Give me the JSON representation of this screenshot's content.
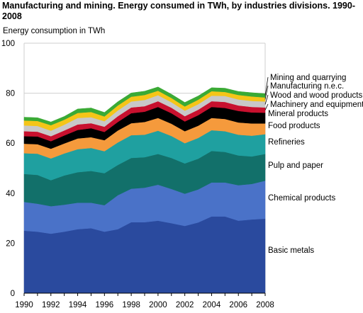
{
  "chart_data": {
    "type": "area",
    "stacked": true,
    "title": "Manufacturing and mining. Energy consumed in TWh, by industries divisions. 1990-2008",
    "ylabel": "Energy consumption in TWh",
    "xlabel": "",
    "ylim": [
      0,
      100
    ],
    "y_ticks": [
      "0",
      "20",
      "40",
      "60",
      "80",
      "100"
    ],
    "x": [
      1990,
      1991,
      1992,
      1993,
      1994,
      1995,
      1996,
      1997,
      1998,
      1999,
      2000,
      2001,
      2002,
      2003,
      2004,
      2005,
      2006,
      2007,
      2008
    ],
    "x_ticks": [
      "1990",
      "1992",
      "1994",
      "1996",
      "1998",
      "2000",
      "2002",
      "2004",
      "2006",
      "2008"
    ],
    "grid": true,
    "series": [
      {
        "name": "Basic metals",
        "color": "#2a4a9e",
        "values": [
          25.0,
          24.6,
          23.8,
          24.6,
          25.6,
          26.0,
          24.6,
          25.6,
          28.4,
          28.4,
          29.0,
          28.0,
          26.9,
          28.3,
          30.7,
          30.7,
          29.0,
          29.5,
          29.8
        ]
      },
      {
        "name": "Chemical products",
        "color": "#4a72c8",
        "values": [
          11.5,
          11.2,
          11.0,
          10.8,
          10.6,
          10.2,
          10.6,
          13.6,
          13.4,
          13.8,
          14.4,
          13.7,
          12.9,
          13.2,
          13.6,
          13.6,
          14.2,
          14.2,
          15.2
        ]
      },
      {
        "name": "Pulp and paper",
        "color": "#12706a",
        "values": [
          11.2,
          11.5,
          10.4,
          11.7,
          12.2,
          12.7,
          12.8,
          12.1,
          12.3,
          12.2,
          12.3,
          12.4,
          12.1,
          12.3,
          12.6,
          12.2,
          11.9,
          11.0,
          10.7
        ]
      },
      {
        "name": "Refineries",
        "color": "#1fa0a0",
        "values": [
          8.3,
          8.5,
          8.7,
          8.8,
          9.2,
          9.2,
          8.8,
          9.0,
          9.1,
          9.0,
          9.3,
          8.8,
          8.1,
          8.3,
          8.3,
          8.3,
          8.3,
          8.3,
          7.9
        ]
      },
      {
        "name": "Food products",
        "color": "#f59a3c",
        "values": [
          3.8,
          3.8,
          3.9,
          4.0,
          4.3,
          4.3,
          4.4,
          4.8,
          4.8,
          5.1,
          5.1,
          4.9,
          4.8,
          4.9,
          4.9,
          4.9,
          4.9,
          4.9,
          4.3
        ]
      },
      {
        "name": "Mineral products",
        "color": "#000000",
        "values": [
          3.0,
          3.1,
          3.0,
          3.2,
          3.4,
          3.6,
          3.3,
          3.4,
          4.0,
          4.1,
          4.4,
          4.2,
          3.9,
          4.2,
          4.4,
          4.4,
          4.6,
          4.4,
          4.3
        ]
      },
      {
        "name": "Machinery and equipment",
        "color": "#c8102e",
        "values": [
          2.0,
          1.9,
          2.0,
          2.0,
          2.2,
          2.0,
          2.1,
          2.3,
          2.3,
          2.2,
          2.3,
          2.2,
          2.1,
          2.2,
          2.3,
          2.4,
          2.2,
          2.2,
          2.1
        ]
      },
      {
        "name": "Wood and wood products",
        "color": "#c8c8c8",
        "values": [
          2.3,
          2.3,
          2.2,
          2.3,
          2.6,
          2.4,
          2.2,
          2.3,
          2.4,
          2.5,
          2.4,
          2.2,
          2.2,
          2.2,
          2.2,
          2.4,
          2.4,
          2.4,
          2.4
        ]
      },
      {
        "name": "Manufacturing n.e.c.",
        "color": "#f5c518",
        "values": [
          2.0,
          2.0,
          2.2,
          2.0,
          2.0,
          2.1,
          1.9,
          2.0,
          1.9,
          2.0,
          1.8,
          1.7,
          1.7,
          1.8,
          1.8,
          1.6,
          1.8,
          1.8,
          1.6
        ]
      },
      {
        "name": "Mining and quarrying",
        "color": "#3aaa35",
        "values": [
          1.3,
          1.3,
          1.3,
          1.3,
          1.6,
          1.6,
          1.6,
          1.5,
          1.5,
          1.5,
          1.5,
          1.5,
          1.6,
          1.5,
          1.4,
          1.5,
          1.4,
          1.5,
          1.5
        ]
      }
    ]
  }
}
